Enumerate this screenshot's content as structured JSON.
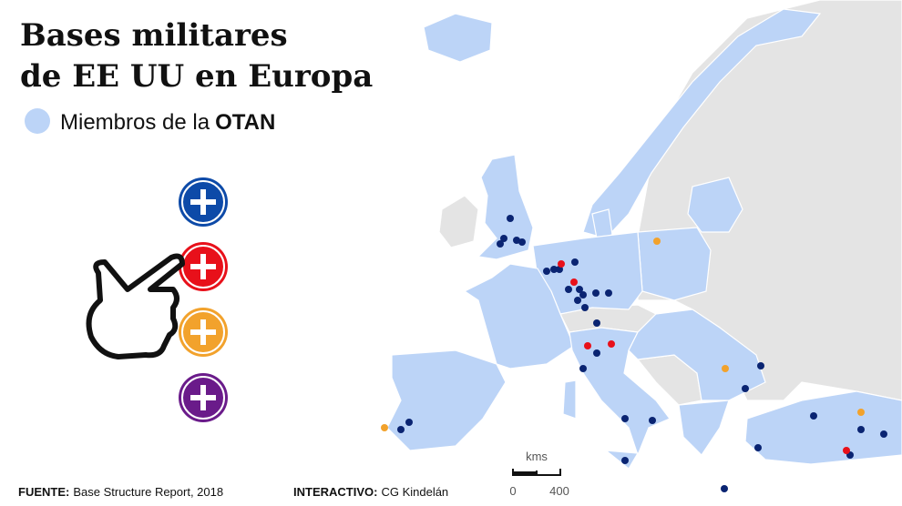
{
  "title": [
    "Bases militares",
    "de EE UU en Europa"
  ],
  "legend": {
    "label": "Miembros de la",
    "emphasis": "OTAN"
  },
  "source": {
    "label": "FUENTE:",
    "text": "Base Structure Report, 2018"
  },
  "credit": {
    "label": "INTERACTIVO:",
    "text": "CG Kindelán"
  },
  "scale": {
    "unit": "kms",
    "ticks": [
      0,
      400
    ]
  }
}
